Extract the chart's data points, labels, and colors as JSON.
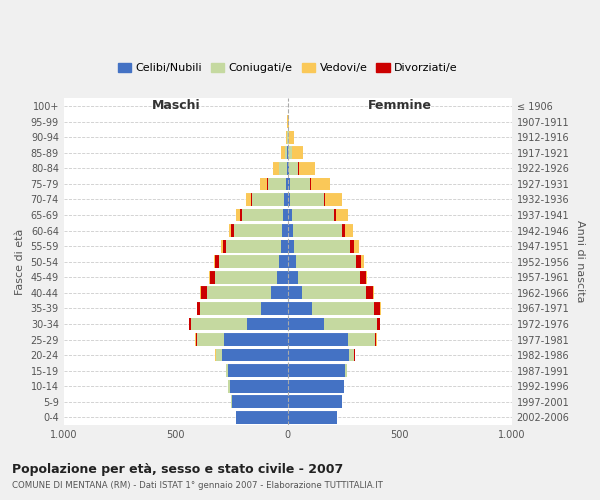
{
  "age_groups": [
    "0-4",
    "5-9",
    "10-14",
    "15-19",
    "20-24",
    "25-29",
    "30-34",
    "35-39",
    "40-44",
    "45-49",
    "50-54",
    "55-59",
    "60-64",
    "65-69",
    "70-74",
    "75-79",
    "80-84",
    "85-89",
    "90-94",
    "95-99",
    "100+"
  ],
  "birth_years": [
    "2002-2006",
    "1997-2001",
    "1992-1996",
    "1987-1991",
    "1982-1986",
    "1977-1981",
    "1972-1976",
    "1967-1971",
    "1962-1966",
    "1957-1961",
    "1952-1956",
    "1947-1951",
    "1942-1946",
    "1937-1941",
    "1932-1936",
    "1927-1931",
    "1922-1926",
    "1917-1921",
    "1912-1916",
    "1907-1911",
    "≤ 1906"
  ],
  "males": {
    "celibe": [
      230,
      250,
      260,
      265,
      295,
      285,
      180,
      120,
      75,
      50,
      40,
      30,
      25,
      20,
      15,
      8,
      4,
      2,
      0,
      0,
      0
    ],
    "coniugato": [
      0,
      2,
      5,
      10,
      25,
      120,
      250,
      270,
      285,
      275,
      265,
      245,
      215,
      185,
      145,
      80,
      35,
      12,
      4,
      1,
      0
    ],
    "vedovo": [
      0,
      0,
      0,
      0,
      2,
      2,
      2,
      2,
      2,
      3,
      5,
      8,
      12,
      18,
      22,
      30,
      25,
      18,
      5,
      2,
      0
    ],
    "divorziato": [
      0,
      0,
      0,
      0,
      2,
      5,
      10,
      15,
      28,
      22,
      18,
      15,
      12,
      8,
      5,
      4,
      2,
      0,
      0,
      0,
      0
    ]
  },
  "females": {
    "nubile": [
      220,
      240,
      250,
      255,
      272,
      270,
      160,
      110,
      65,
      45,
      38,
      28,
      22,
      18,
      12,
      8,
      4,
      2,
      1,
      0,
      0
    ],
    "coniugata": [
      0,
      1,
      3,
      8,
      25,
      120,
      240,
      275,
      285,
      278,
      265,
      248,
      218,
      188,
      150,
      90,
      42,
      16,
      6,
      2,
      0
    ],
    "vedova": [
      0,
      0,
      0,
      0,
      1,
      2,
      2,
      2,
      3,
      5,
      12,
      22,
      35,
      55,
      72,
      88,
      75,
      48,
      20,
      5,
      0
    ],
    "divorziata": [
      0,
      0,
      0,
      0,
      2,
      5,
      12,
      28,
      32,
      28,
      25,
      22,
      15,
      10,
      6,
      4,
      2,
      0,
      0,
      0,
      0
    ]
  },
  "colors": {
    "celibe": "#4472C4",
    "coniugato": "#C5D9A0",
    "vedovo": "#FAC858",
    "divorziato": "#CC0000"
  },
  "title": "Popolazione per età, sesso e stato civile - 2007",
  "subtitle": "COMUNE DI MENTANA (RM) - Dati ISTAT 1° gennaio 2007 - Elaborazione TUTTITALIA.IT",
  "ylabel_left": "Fasce di età",
  "ylabel_right": "Anni di nascita",
  "xlabel_left": "Maschi",
  "xlabel_right": "Femmine",
  "xlim": 1000,
  "bg_color": "#f0f0f0",
  "plot_bg": "#ffffff"
}
